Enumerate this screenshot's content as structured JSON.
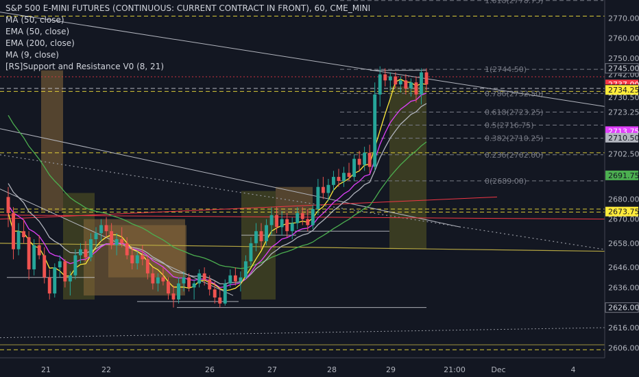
{
  "legend": {
    "symbol": "S&P 500 E-MINI FUTURES (CONTINUOUS: CURRENT CONTRACT IN FRONT), 60, CME_MINI",
    "indicators": [
      "MA (50, close)",
      "EMA (50, close)",
      "EMA (200, close)",
      "MA (9, close)",
      "[RS]Support and Resistance V0 (8, 21)"
    ]
  },
  "colors": {
    "background": "#131722",
    "up": "#26a69a",
    "down": "#ef5350",
    "ma50": "#b2b5be",
    "ema50": "#e040fb",
    "ema200": "#4caf50",
    "ma9": "#ffeb3b",
    "trendline": "#b2b5be",
    "red_line": "#f23645",
    "olive_line": "#b5a642",
    "fib": "#787b86",
    "sr_box": "#8a6a3a",
    "sr_box_olive": "#5a5a22"
  },
  "chart_data": {
    "type": "candlestick",
    "title": "S&P 500 E-MINI FUTURES (CONTINUOUS: CURRENT CONTRACT IN FRONT), 60, CME_MINI",
    "y_ticks": [
      2770,
      2760,
      2750,
      2742,
      2730.5,
      2723.25,
      2702.5,
      2680,
      2670,
      2658,
      2646,
      2636,
      2616,
      2606
    ],
    "y_range": [
      2601,
      2779
    ],
    "x_ticks": [
      "21",
      "22",
      "26",
      "27",
      "28",
      "29",
      "21:00",
      "Dec",
      "4"
    ],
    "price_labels": [
      {
        "value": "2745.00",
        "price": 2745,
        "bg": "#131722",
        "fg": "#d1d4dc",
        "border": "#787b86"
      },
      {
        "value": "2737.00",
        "price": 2737,
        "bg": "#f23645",
        "fg": "#ffffff"
      },
      {
        "value": "35:39",
        "price": 2734.6,
        "bg": "#131722",
        "fg": "#f23645"
      },
      {
        "value": "2734.25",
        "price": 2734.25,
        "bg": "#ffeb3b",
        "fg": "#131722"
      },
      {
        "value": "2713.75",
        "price": 2713.75,
        "bg": "#e040fb",
        "fg": "#ffffff"
      },
      {
        "value": "2710.50",
        "price": 2710.5,
        "bg": "#b2b5be",
        "fg": "#131722"
      },
      {
        "value": "2691.75",
        "price": 2691.75,
        "bg": "#4caf50",
        "fg": "#131722"
      },
      {
        "value": "2673.75",
        "price": 2673.75,
        "bg": "#ffeb3b",
        "fg": "#131722"
      },
      {
        "value": "2626.00",
        "price": 2626,
        "bg": "#131722",
        "fg": "#d1d4dc",
        "border": "#787b86"
      }
    ],
    "fib_levels": [
      {
        "label": "1.618(2778.75)",
        "price": 2778.75
      },
      {
        "label": "1(2744.50)",
        "price": 2744.5
      },
      {
        "label": "0.786(2732.50)",
        "price": 2732.5
      },
      {
        "label": "0.618(2723.25)",
        "price": 2723.25
      },
      {
        "label": "0.5(2716.75)",
        "price": 2716.75
      },
      {
        "label": "0.382(2710.25)",
        "price": 2710.25
      },
      {
        "label": "0.236(2702.00)",
        "price": 2702.0
      },
      {
        "label": "0(2689.00)",
        "price": 2689.0
      }
    ],
    "horizontal_levels": [
      {
        "price": 2771,
        "style": "dashed",
        "color": "#ffeb3b"
      },
      {
        "price": 2733.5,
        "style": "dashed",
        "color": "#ffeb3b"
      },
      {
        "price": 2735,
        "style": "dashed",
        "color": "#d1d4dc"
      },
      {
        "price": 2703,
        "style": "dashed",
        "color": "#ffeb3b"
      },
      {
        "price": 2675,
        "style": "dashed",
        "color": "#ffeb3b"
      },
      {
        "price": 2673.5,
        "style": "dashed",
        "color": "#ffeb3b"
      },
      {
        "price": 2740.8,
        "style": "dotted",
        "color": "#f23645"
      },
      {
        "price": 2607.5,
        "style": "solid",
        "color": "#b5a642"
      },
      {
        "price": 2605,
        "style": "dashed",
        "color": "#ffeb3b"
      }
    ],
    "ohlc": [
      [
        2681,
        2686,
        2666,
        2673
      ],
      [
        2673,
        2676,
        2650,
        2655
      ],
      [
        2655,
        2668,
        2652,
        2664
      ],
      [
        2664,
        2670,
        2658,
        2661
      ],
      [
        2661,
        2664,
        2640,
        2645
      ],
      [
        2645,
        2660,
        2642,
        2657
      ],
      [
        2657,
        2662,
        2650,
        2652
      ],
      [
        2652,
        2656,
        2638,
        2641
      ],
      [
        2641,
        2645,
        2630,
        2633
      ],
      [
        2633,
        2648,
        2631,
        2646
      ],
      [
        2646,
        2652,
        2641,
        2649
      ],
      [
        2649,
        2650,
        2636,
        2639
      ],
      [
        2639,
        2644,
        2632,
        2642
      ],
      [
        2642,
        2655,
        2640,
        2652
      ],
      [
        2652,
        2658,
        2648,
        2655
      ],
      [
        2655,
        2659,
        2649,
        2651
      ],
      [
        2651,
        2663,
        2649,
        2660
      ],
      [
        2660,
        2666,
        2656,
        2663
      ],
      [
        2663,
        2670,
        2659,
        2667
      ],
      [
        2667,
        2671,
        2661,
        2664
      ],
      [
        2664,
        2668,
        2655,
        2657
      ],
      [
        2657,
        2663,
        2652,
        2660
      ],
      [
        2660,
        2666,
        2656,
        2658
      ],
      [
        2658,
        2661,
        2650,
        2652
      ],
      [
        2652,
        2656,
        2645,
        2648
      ],
      [
        2648,
        2654,
        2645,
        2652
      ],
      [
        2652,
        2657,
        2647,
        2650
      ],
      [
        2650,
        2652,
        2640,
        2643
      ],
      [
        2643,
        2646,
        2635,
        2638
      ],
      [
        2638,
        2643,
        2634,
        2641
      ],
      [
        2641,
        2646,
        2637,
        2639
      ],
      [
        2639,
        2641,
        2630,
        2633
      ],
      [
        2633,
        2637,
        2626,
        2630
      ],
      [
        2630,
        2641,
        2628,
        2638
      ],
      [
        2638,
        2644,
        2634,
        2641
      ],
      [
        2641,
        2643,
        2634,
        2636
      ],
      [
        2636,
        2640,
        2630,
        2638
      ],
      [
        2638,
        2645,
        2636,
        2643
      ],
      [
        2643,
        2646,
        2637,
        2640
      ],
      [
        2640,
        2642,
        2632,
        2635
      ],
      [
        2635,
        2639,
        2628,
        2631
      ],
      [
        2631,
        2636,
        2626,
        2628
      ],
      [
        2628,
        2640,
        2627,
        2638
      ],
      [
        2638,
        2645,
        2636,
        2642
      ],
      [
        2642,
        2646,
        2637,
        2639
      ],
      [
        2639,
        2644,
        2634,
        2641
      ],
      [
        2641,
        2652,
        2640,
        2649
      ],
      [
        2649,
        2661,
        2647,
        2658
      ],
      [
        2658,
        2668,
        2654,
        2664
      ],
      [
        2664,
        2668,
        2655,
        2659
      ],
      [
        2659,
        2670,
        2657,
        2667
      ],
      [
        2667,
        2676,
        2662,
        2672
      ],
      [
        2672,
        2676,
        2663,
        2666
      ],
      [
        2666,
        2674,
        2662,
        2670
      ],
      [
        2670,
        2673,
        2661,
        2664
      ],
      [
        2664,
        2671,
        2660,
        2668
      ],
      [
        2668,
        2676,
        2665,
        2673
      ],
      [
        2673,
        2676,
        2667,
        2670
      ],
      [
        2670,
        2675,
        2664,
        2667
      ],
      [
        2667,
        2677,
        2665,
        2675
      ],
      [
        2675,
        2690,
        2672,
        2686
      ],
      [
        2686,
        2691,
        2680,
        2683
      ],
      [
        2683,
        2690,
        2679,
        2687
      ],
      [
        2687,
        2694,
        2684,
        2691
      ],
      [
        2691,
        2695,
        2686,
        2689
      ],
      [
        2689,
        2696,
        2686,
        2693
      ],
      [
        2693,
        2698,
        2689,
        2691
      ],
      [
        2691,
        2702,
        2689,
        2700
      ],
      [
        2700,
        2704,
        2694,
        2697
      ],
      [
        2697,
        2706,
        2694,
        2703
      ],
      [
        2703,
        2707,
        2693,
        2696
      ],
      [
        2696,
        2738,
        2694,
        2732
      ],
      [
        2732,
        2746,
        2726,
        2742
      ],
      [
        2742,
        2745,
        2736,
        2739
      ],
      [
        2739,
        2743,
        2734,
        2741
      ],
      [
        2741,
        2743,
        2735,
        2737
      ],
      [
        2737,
        2741,
        2733,
        2739
      ],
      [
        2739,
        2742,
        2732,
        2735
      ],
      [
        2735,
        2740,
        2731,
        2738
      ],
      [
        2738,
        2741,
        2728,
        2732
      ],
      [
        2732,
        2745,
        2727,
        2743
      ],
      [
        2743,
        2745,
        2734,
        2737
      ]
    ]
  }
}
